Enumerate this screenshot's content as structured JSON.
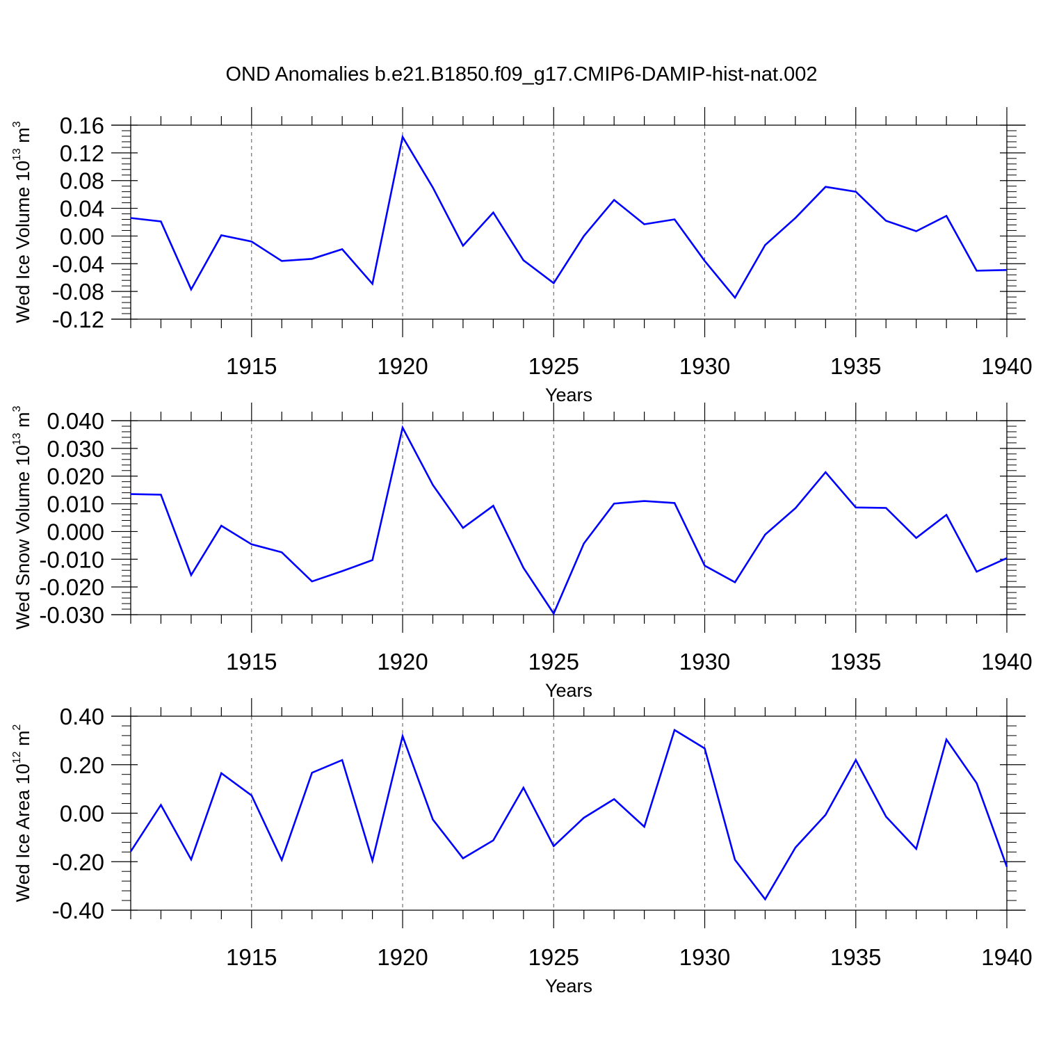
{
  "title": "OND Anomalies b.e21.B1850.f09_g17.CMIP6-DAMIP-hist-nat.002",
  "chart_data": [
    {
      "type": "line",
      "title": "OND Anomalies b.e21.B1850.f09_g17.CMIP6-DAMIP-hist-nat.002",
      "xlabel": "Years",
      "ylabel": {
        "text": "Wed Ice Volume 10",
        "exp1": "13",
        "unit": " m",
        "exp2": "3"
      },
      "xlim": [
        1911,
        1940
      ],
      "ylim": [
        -0.12,
        0.16
      ],
      "yticks": [
        -0.12,
        -0.08,
        -0.04,
        0.0,
        0.04,
        0.08,
        0.12,
        0.16
      ],
      "ytick_labels": [
        "-0.12",
        "-0.08",
        "-0.04",
        "0.00",
        "0.04",
        "0.08",
        "0.12",
        "0.16"
      ],
      "xticks": [
        1915,
        1920,
        1925,
        1930,
        1935,
        1940
      ],
      "xtick_labels": [
        "1915",
        "1920",
        "1925",
        "1930",
        "1935",
        "1940"
      ],
      "grid": "vertical dashed at major x ticks",
      "line_color": "#0000ff",
      "x": [
        1911,
        1912,
        1913,
        1914,
        1915,
        1916,
        1917,
        1918,
        1919,
        1920,
        1921,
        1922,
        1923,
        1924,
        1925,
        1926,
        1927,
        1928,
        1929,
        1930,
        1931,
        1932,
        1933,
        1934,
        1935,
        1936,
        1937,
        1938,
        1939,
        1940
      ],
      "values": [
        0.026,
        0.021,
        -0.077,
        0.001,
        -0.008,
        -0.036,
        -0.033,
        -0.019,
        -0.069,
        0.143,
        0.07,
        -0.014,
        0.034,
        -0.035,
        -0.068,
        0.0,
        0.052,
        0.017,
        0.024,
        -0.036,
        -0.089,
        -0.013,
        0.026,
        0.071,
        0.064,
        0.022,
        0.007,
        0.029,
        -0.05,
        -0.049
      ]
    },
    {
      "type": "line",
      "xlabel": "Years",
      "ylabel": {
        "text": "Wed Snow Volume 10",
        "exp1": "13",
        "unit": " m",
        "exp2": "3"
      },
      "xlim": [
        1911,
        1940
      ],
      "ylim": [
        -0.03,
        0.04
      ],
      "yticks": [
        -0.03,
        -0.02,
        -0.01,
        0.0,
        0.01,
        0.02,
        0.03,
        0.04
      ],
      "ytick_labels": [
        "-0.030",
        "-0.020",
        "-0.010",
        "0.000",
        "0.010",
        "0.020",
        "0.030",
        "0.040"
      ],
      "xticks": [
        1915,
        1920,
        1925,
        1930,
        1935,
        1940
      ],
      "xtick_labels": [
        "1915",
        "1920",
        "1925",
        "1930",
        "1935",
        "1940"
      ],
      "grid": "vertical dashed at major x ticks",
      "line_color": "#0000ff",
      "x": [
        1911,
        1912,
        1913,
        1914,
        1915,
        1916,
        1917,
        1918,
        1919,
        1920,
        1921,
        1922,
        1923,
        1924,
        1925,
        1926,
        1927,
        1928,
        1929,
        1930,
        1931,
        1932,
        1933,
        1934,
        1935,
        1936,
        1937,
        1938,
        1939,
        1940
      ],
      "values": [
        0.0135,
        0.0133,
        -0.0157,
        0.0021,
        -0.0046,
        -0.0075,
        -0.018,
        -0.0143,
        -0.0103,
        0.0375,
        0.0168,
        0.0013,
        0.0093,
        -0.0131,
        -0.0296,
        -0.0043,
        0.0101,
        0.011,
        0.0103,
        -0.0123,
        -0.0183,
        -0.0011,
        0.0084,
        0.0214,
        0.0087,
        0.0085,
        -0.0023,
        0.006,
        -0.0145,
        -0.0096
      ]
    },
    {
      "type": "line",
      "xlabel": "Years",
      "ylabel": {
        "text": "Wed Ice Area 10",
        "exp1": "12",
        "unit": " m",
        "exp2": "2"
      },
      "xlim": [
        1911,
        1940
      ],
      "ylim": [
        -0.4,
        0.4
      ],
      "yticks": [
        -0.4,
        -0.2,
        0.0,
        0.2,
        0.4
      ],
      "ytick_labels": [
        "-0.40",
        "-0.20",
        "0.00",
        "0.20",
        "0.40"
      ],
      "xticks": [
        1915,
        1920,
        1925,
        1930,
        1935,
        1940
      ],
      "xtick_labels": [
        "1915",
        "1920",
        "1925",
        "1930",
        "1935",
        "1940"
      ],
      "grid": "vertical dashed at major x ticks",
      "line_color": "#0000ff",
      "x": [
        1911,
        1912,
        1913,
        1914,
        1915,
        1916,
        1917,
        1918,
        1919,
        1920,
        1921,
        1922,
        1923,
        1924,
        1925,
        1926,
        1927,
        1928,
        1929,
        1930,
        1931,
        1932,
        1933,
        1934,
        1935,
        1936,
        1937,
        1938,
        1939,
        1940
      ],
      "values": [
        -0.158,
        0.034,
        -0.191,
        0.165,
        0.073,
        -0.193,
        0.167,
        0.219,
        -0.196,
        0.318,
        -0.026,
        -0.186,
        -0.112,
        0.105,
        -0.136,
        -0.019,
        0.058,
        -0.056,
        0.343,
        0.267,
        -0.192,
        -0.355,
        -0.142,
        -0.007,
        0.219,
        -0.014,
        -0.147,
        0.304,
        0.124,
        -0.221
      ]
    }
  ]
}
